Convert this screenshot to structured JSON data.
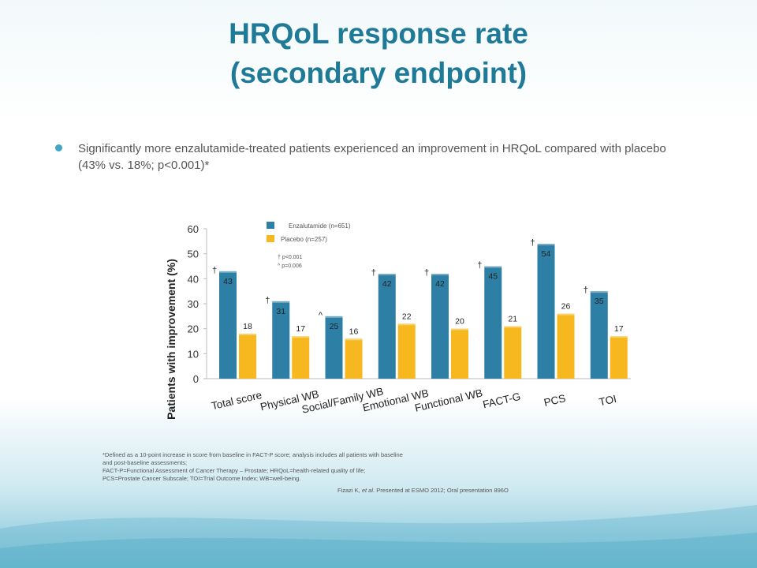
{
  "title_line1": "HRQoL response rate",
  "title_line2": "(secondary endpoint)",
  "bullet": "Significantly more enzalutamide-treated patients experienced an improvement in HRQoL compared with placebo (43% vs. 18%; p<0.001)*",
  "legend": {
    "enzalutamide": "Enzalutamide (n=651)",
    "placebo": "Placebo (n=257)",
    "sig1": "† p<0.001",
    "sig2": "^ p=0.006"
  },
  "footnotes": {
    "line1": "*Defined as a 10-point increase in score from baseline in FACT-P score; analysis includes all patients with baseline",
    "line2": "and post-baseline assessments;",
    "line3": "FACT-P=Functional Assessment of Cancer Therapy – Prostate; HRQoL=health-related quality of life;",
    "line4": "PCS=Prostate Cancer Subscale; TOI=Trial Outcome Index; WB=well-being."
  },
  "citation": {
    "authors": "Fizazi K, ",
    "etal": "et al",
    "rest": ". Presented at ESMO 2012; Oral presentation 896O"
  },
  "colors": {
    "title": "#1f7a98",
    "enzalutamide": "#2e7fa6",
    "placebo": "#f6b81e",
    "text": "#555555"
  },
  "chart_data": {
    "type": "bar",
    "ylabel": "Patients with improvement (%)",
    "ylim": [
      0,
      60
    ],
    "yticks": [
      0,
      10,
      20,
      30,
      40,
      50,
      60
    ],
    "categories": [
      "Total score",
      "Physical WB",
      "Social/Family WB",
      "Emotional WB",
      "Functional WB",
      "FACT-G",
      "PCS",
      "TOI"
    ],
    "series": [
      {
        "name": "Enzalutamide (n=651)",
        "values": [
          43,
          31,
          25,
          42,
          42,
          45,
          54,
          35
        ],
        "labels": [
          "43",
          "31",
          "25",
          "42",
          "42",
          "45",
          "54",
          "35"
        ]
      },
      {
        "name": "Placebo (n=257)",
        "values": [
          18,
          17,
          16,
          22,
          20,
          21,
          26,
          17
        ],
        "labels": [
          "18",
          "17",
          "16",
          "22",
          "20",
          "21",
          "26",
          "17"
        ]
      }
    ],
    "significance": [
      "†",
      "†",
      "^",
      "†",
      "†",
      "†",
      "†",
      "†"
    ],
    "legend_position": "top-left"
  }
}
